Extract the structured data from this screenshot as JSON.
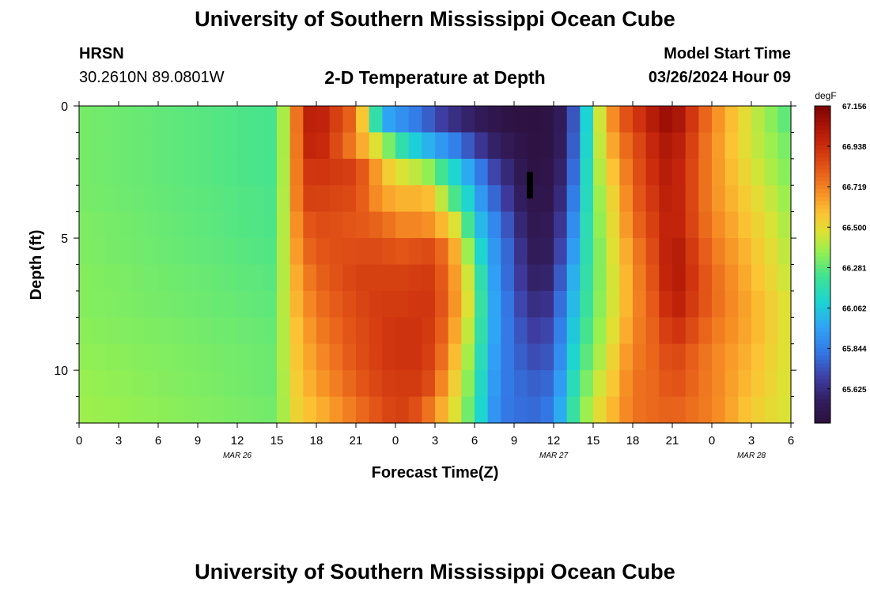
{
  "header": {
    "title": "University of Southern Mississippi Ocean Cube",
    "station": "HRSN",
    "location": "30.2610N  89.0801W",
    "subtitle": "2-D Temperature at Depth",
    "model_label": "Model Start Time",
    "model_time": "03/26/2024 Hour 09"
  },
  "footer": {
    "title": "University of Southern Mississippi Ocean Cube"
  },
  "chart_data": {
    "type": "heatmap",
    "title": "2-D Temperature at Depth",
    "xlabel": "Forecast Time(Z)",
    "ylabel": "Depth (ft)",
    "x_ticks": [
      "0",
      "3",
      "6",
      "9",
      "12",
      "15",
      "18",
      "21",
      "0",
      "3",
      "6",
      "9",
      "12",
      "15",
      "18",
      "21",
      "0",
      "3",
      "6"
    ],
    "date_labels": [
      {
        "label": "MAR 26",
        "hour": 12
      },
      {
        "label": "MAR 27",
        "hour": 36
      },
      {
        "label": "MAR 28",
        "hour": 51
      }
    ],
    "x_range_hours": [
      0,
      54
    ],
    "y_ticks": [
      0,
      5,
      10
    ],
    "ylim": [
      0,
      12
    ],
    "colorbar": {
      "unit": "degF",
      "ticks": [
        "67.156",
        "66.938",
        "66.719",
        "66.500",
        "66.281",
        "66.062",
        "65.844",
        "65.625"
      ],
      "vmin": 65.44,
      "vmax": 67.156
    },
    "depth_levels_ft": [
      0.5,
      1.5,
      2.5,
      3.5,
      4.5,
      5.5,
      6.5,
      7.5,
      8.5,
      9.5,
      10.5,
      11.5
    ],
    "profile_hours": [
      0,
      15,
      16,
      17,
      18,
      21,
      23,
      24,
      25,
      26,
      27,
      28,
      29,
      30,
      31,
      32,
      33,
      34,
      35,
      36,
      37,
      38,
      39,
      40,
      41,
      42,
      44,
      45,
      48,
      51,
      54
    ],
    "current_time_marker": {
      "hour": 34.2,
      "depth_from": 2.5,
      "depth_to": 3.5
    },
    "temperature_profiles_degF": {
      "0": [
        66.32,
        66.32,
        66.32,
        66.32,
        66.33,
        66.33,
        66.34,
        66.34,
        66.35,
        66.36,
        66.37,
        66.38
      ],
      "15": [
        66.24,
        66.24,
        66.24,
        66.25,
        66.25,
        66.26,
        66.27,
        66.28,
        66.29,
        66.3,
        66.3,
        66.31
      ],
      "16": [
        66.55,
        66.55,
        66.56,
        66.56,
        66.57,
        66.57,
        66.55,
        66.55,
        66.53,
        66.52,
        66.5,
        66.48
      ],
      "17": [
        66.95,
        66.93,
        66.9,
        66.88,
        66.8,
        66.75,
        66.7,
        66.66,
        66.62,
        66.6,
        66.58,
        66.56
      ],
      "18": [
        67.02,
        67.0,
        66.92,
        66.88,
        66.85,
        66.82,
        66.78,
        66.75,
        66.72,
        66.68,
        66.65,
        66.6
      ],
      "21": [
        66.75,
        66.7,
        66.88,
        66.85,
        66.82,
        66.85,
        66.88,
        66.86,
        66.84,
        66.83,
        66.8,
        66.75
      ],
      "23": [
        66.0,
        66.4,
        66.6,
        66.65,
        66.78,
        66.85,
        66.88,
        66.9,
        66.9,
        66.9,
        66.88,
        66.85
      ],
      "24": [
        65.92,
        66.25,
        66.48,
        66.62,
        66.72,
        66.82,
        66.88,
        66.9,
        66.92,
        66.92,
        66.9,
        66.88
      ],
      "25": [
        65.88,
        66.1,
        66.45,
        66.6,
        66.7,
        66.82,
        66.88,
        66.9,
        66.92,
        66.92,
        66.9,
        66.88
      ],
      "26": [
        65.8,
        66.05,
        66.4,
        66.62,
        66.72,
        66.85,
        66.9,
        66.92,
        66.92,
        66.92,
        66.9,
        66.8
      ],
      "27": [
        65.72,
        65.95,
        66.32,
        66.55,
        66.65,
        66.85,
        66.9,
        66.9,
        66.88,
        66.85,
        66.8,
        66.7
      ],
      "28": [
        65.65,
        65.9,
        66.15,
        66.3,
        66.55,
        66.7,
        66.72,
        66.75,
        66.72,
        66.68,
        66.62,
        66.55
      ],
      "29": [
        65.6,
        65.8,
        66.05,
        66.2,
        66.4,
        66.55,
        66.6,
        66.6,
        66.55,
        66.5,
        66.45,
        66.4
      ],
      "30": [
        65.56,
        65.7,
        65.9,
        66.0,
        66.08,
        66.2,
        66.3,
        66.35,
        66.32,
        66.28,
        66.25,
        66.22
      ],
      "31": [
        65.5,
        65.6,
        65.75,
        65.85,
        65.95,
        66.0,
        66.05,
        66.05,
        66.05,
        66.02,
        66.0,
        65.98
      ],
      "32": [
        65.48,
        65.55,
        65.65,
        65.72,
        65.8,
        65.85,
        65.85,
        65.88,
        65.88,
        65.87,
        65.86,
        65.85
      ],
      "33": [
        65.46,
        65.5,
        65.56,
        65.62,
        65.68,
        65.72,
        65.74,
        65.76,
        65.78,
        65.79,
        65.8,
        65.8
      ],
      "34": [
        65.45,
        65.46,
        65.48,
        65.5,
        65.52,
        65.56,
        65.6,
        65.65,
        65.7,
        65.74,
        65.78,
        65.8
      ],
      "35": [
        65.45,
        65.45,
        65.46,
        65.48,
        65.5,
        65.52,
        65.55,
        65.6,
        65.66,
        65.7,
        65.75,
        65.78
      ],
      "36": [
        65.48,
        65.48,
        65.5,
        65.52,
        65.55,
        65.58,
        65.62,
        65.68,
        65.74,
        65.78,
        65.82,
        65.86
      ],
      "37": [
        65.6,
        65.62,
        65.65,
        65.7,
        65.76,
        65.82,
        65.88,
        65.92,
        65.96,
        66.0,
        66.05,
        66.1
      ],
      "38": [
        65.88,
        65.9,
        65.94,
        65.98,
        66.02,
        66.06,
        66.1,
        66.12,
        66.16,
        66.2,
        66.25,
        66.3
      ],
      "39": [
        66.3,
        66.32,
        66.32,
        66.3,
        66.3,
        66.28,
        66.28,
        66.3,
        66.32,
        66.35,
        66.4,
        66.45
      ],
      "40": [
        66.6,
        66.55,
        66.5,
        66.45,
        66.42,
        66.4,
        66.4,
        66.4,
        66.42,
        66.45,
        66.5,
        66.55
      ],
      "41": [
        66.78,
        66.72,
        66.65,
        66.6,
        66.58,
        66.55,
        66.52,
        66.52,
        66.55,
        66.6,
        66.62,
        66.65
      ],
      "42": [
        66.88,
        66.82,
        66.8,
        66.78,
        66.75,
        66.7,
        66.68,
        66.68,
        66.7,
        66.72,
        66.75,
        66.75
      ],
      "44": [
        67.05,
        67.0,
        66.98,
        66.95,
        66.92,
        66.9,
        66.88,
        66.85,
        66.82,
        66.8,
        66.78,
        66.78
      ],
      "45": [
        67.1,
        67.05,
        67.02,
        67.02,
        67.02,
        67.05,
        67.05,
        67.02,
        66.95,
        66.88,
        66.85,
        66.8
      ],
      "48": [
        66.72,
        66.7,
        66.7,
        66.7,
        66.72,
        66.75,
        66.78,
        66.78,
        66.75,
        66.72,
        66.72,
        66.72
      ],
      "51": [
        66.45,
        66.45,
        66.48,
        66.52,
        66.55,
        66.58,
        66.6,
        66.62,
        66.62,
        66.6,
        66.58,
        66.55
      ],
      "54": [
        66.25,
        66.3,
        66.32,
        66.35,
        66.38,
        66.4,
        66.42,
        66.45,
        66.45,
        66.45,
        66.45,
        66.45
      ]
    }
  }
}
